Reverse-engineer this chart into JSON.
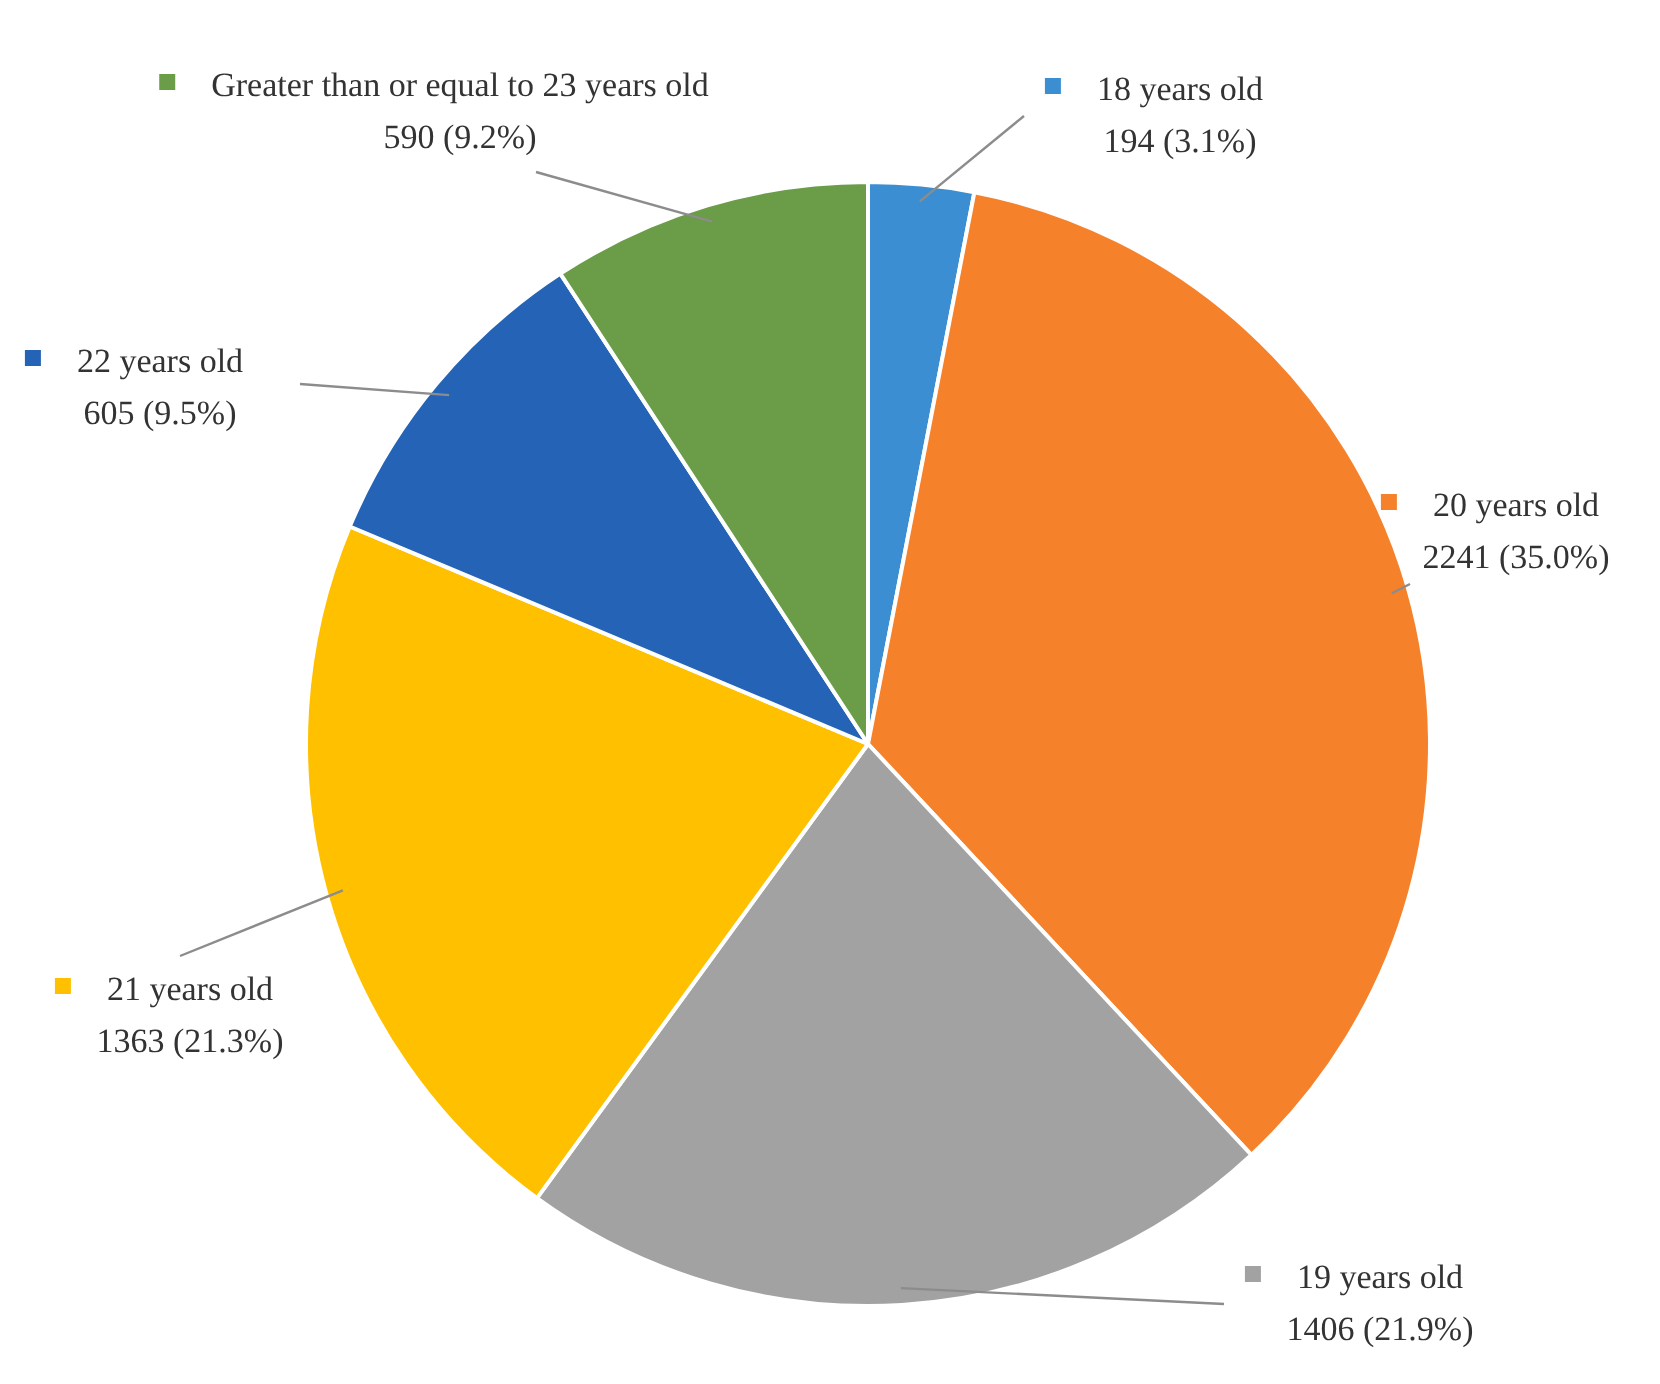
{
  "chart_data": {
    "type": "pie",
    "categories": [
      "18 years old",
      "20 years old",
      "19 years old",
      "21 years old",
      "22 years old",
      "Greater than or equal to 23 years old"
    ],
    "values": [
      194,
      2241,
      1406,
      1363,
      605,
      590
    ],
    "colors": [
      "#3b8ed2",
      "#f5812a",
      "#a2a2a2",
      "#ffc000",
      "#2463b5",
      "#6b9c47"
    ],
    "value_labels": [
      "194 (3.1%)",
      "2241 (35.0%)",
      "1406 (21.9%)",
      "1363 (21.3%)",
      "605 (9.5%)",
      "590 (9.2%)"
    ],
    "legend": "top"
  }
}
